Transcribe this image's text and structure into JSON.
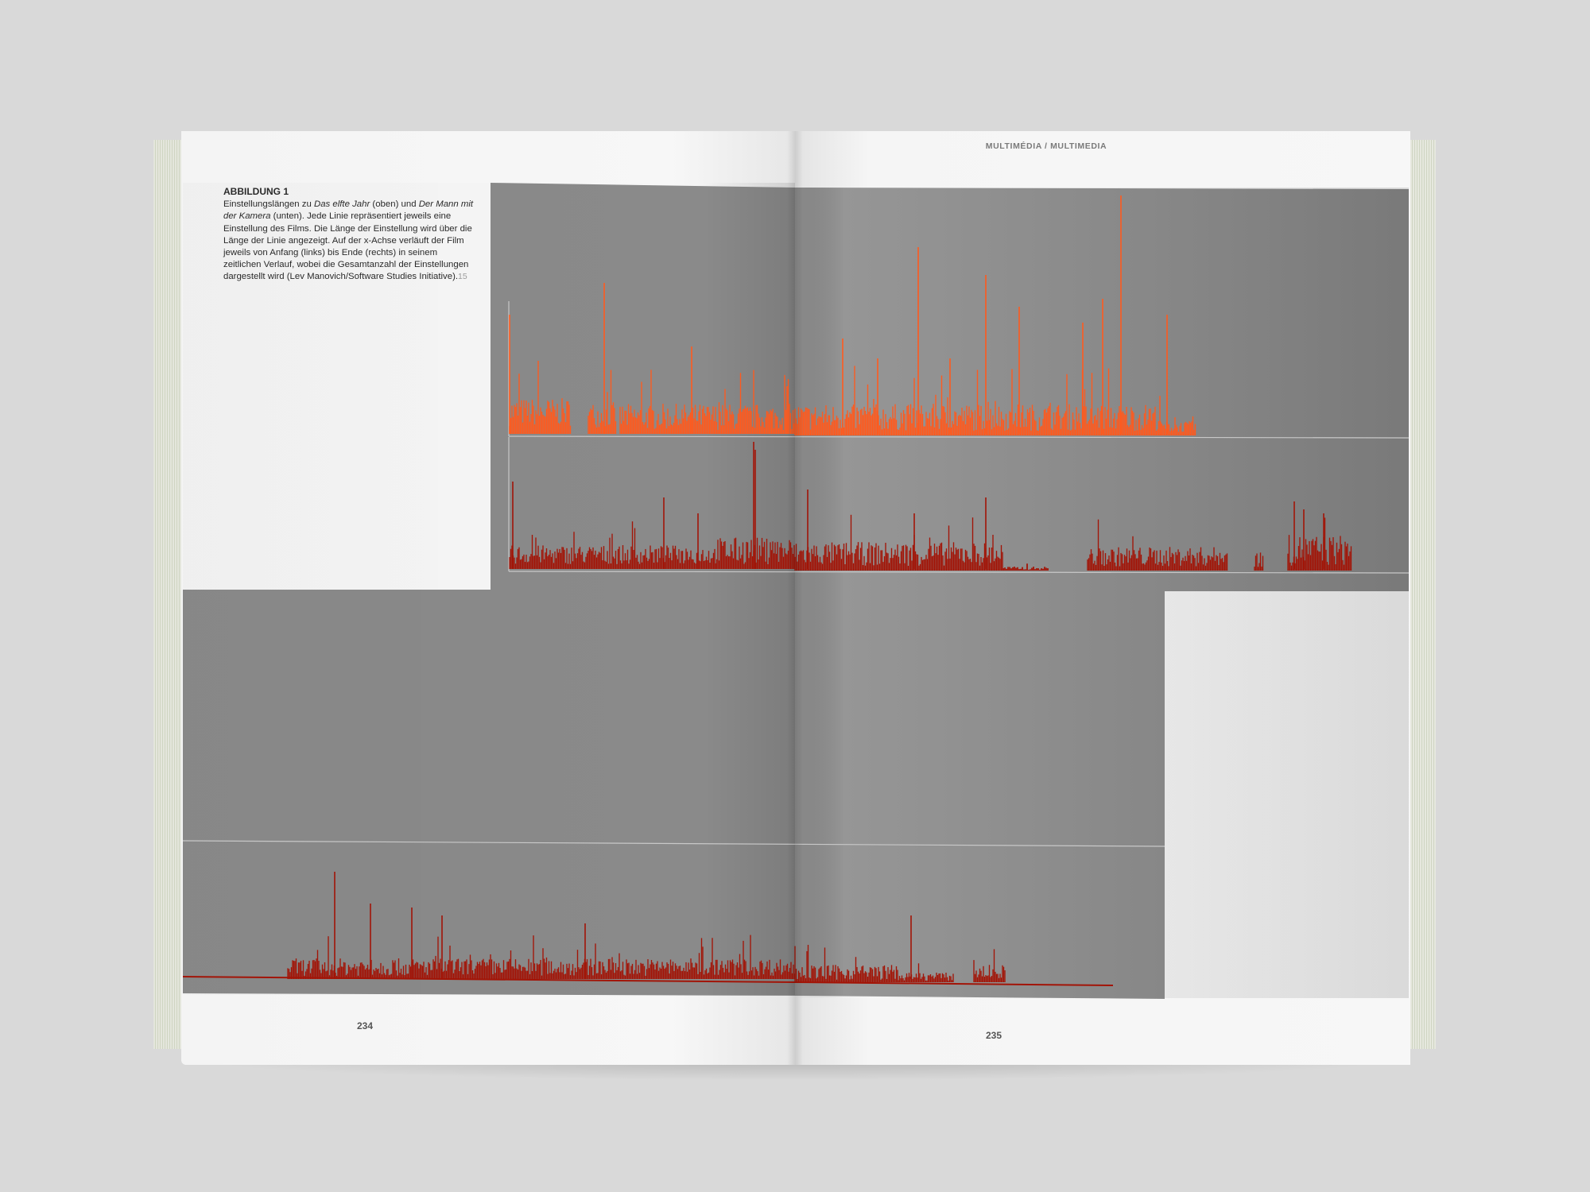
{
  "caption": {
    "title": "ABBILDUNG 1",
    "t1": "Einstellungslängen zu ",
    "i1": "Das elfte Jahr",
    "t2": " (oben) und ",
    "i2": "Der Mann mit der Kamera",
    "t3": " (unten). Jede Linie repräsentiert jeweils eine Einstellung des Films. Die Länge der Einstellung wird über die Länge der Linie angezeigt. Auf der x-Achse verläuft der Film jeweils von Anfang (links) bis Ende (rechts) in seinem zeitlichen Verlauf, wobei die Gesamtanzahl der Einstellungen dargestellt wird (Lev Manovich/Software Studies Initiative).",
    "footnote": "15"
  },
  "running_header": "MULTIMÉDIA / MULTIMEDIA",
  "page_left": "234",
  "page_right": "235",
  "colors": {
    "panel": "#8c8c8c",
    "orange": "#ff5a1e",
    "darkred": "#a21407",
    "baseline": "#c8c8c8"
  }
}
